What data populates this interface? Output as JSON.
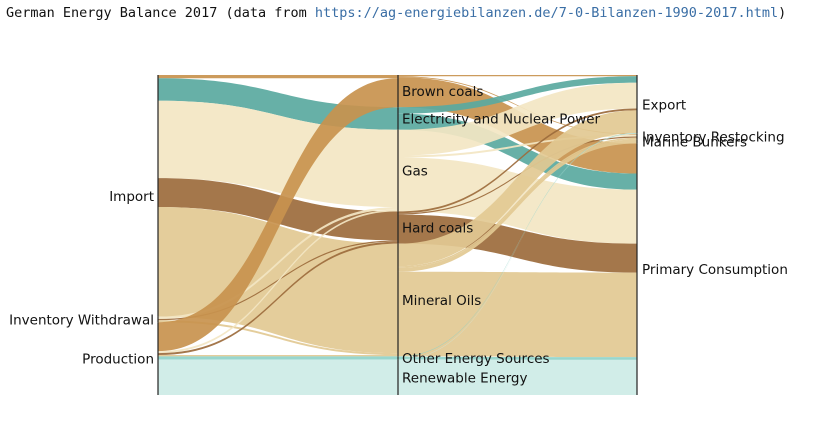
{
  "title": {
    "prefix": "German Energy Balance 2017 (data from ",
    "link": "https://ag-energiebilanzen.de/7-0-Bilanzen-1990-2017.html",
    "suffix": ")"
  },
  "chart_data": {
    "type": "sankey",
    "unit": "",
    "sources": [
      {
        "id": "import",
        "label": "Import"
      },
      {
        "id": "inventory_withdrawal",
        "label": "Inventory Withdrawal"
      },
      {
        "id": "production",
        "label": "Production"
      }
    ],
    "carriers": [
      {
        "id": "brown_coals",
        "label": "Brown coals",
        "color": "#c8934e"
      },
      {
        "id": "electricity_nuclear",
        "label": "Electricity and Nuclear Power",
        "color": "#5aa9a0"
      },
      {
        "id": "gas",
        "label": "Gas",
        "color": "#f3e6c3"
      },
      {
        "id": "hard_coals",
        "label": "Hard coals",
        "color": "#9c6b3c"
      },
      {
        "id": "mineral_oils",
        "label": "Mineral Oils",
        "color": "#e2c992"
      },
      {
        "id": "other_energy",
        "label": "Other Energy Sources",
        "color": "#8fd3c9"
      },
      {
        "id": "renewable",
        "label": "Renewable Energy",
        "color": "#cdebe6"
      }
    ],
    "uses": [
      {
        "id": "export",
        "label": "Export"
      },
      {
        "id": "inventory_restocking",
        "label": "Inventory Restocking"
      },
      {
        "id": "marine_bunkers",
        "label": "Marine Bunkers"
      },
      {
        "id": "primary_consumption",
        "label": "Primary Consumption"
      }
    ],
    "inflows": [
      {
        "source": "import",
        "carrier": "brown_coals",
        "value": 2
      },
      {
        "source": "import",
        "carrier": "electricity_nuclear",
        "value": 14
      },
      {
        "source": "import",
        "carrier": "gas",
        "value": 48
      },
      {
        "source": "import",
        "carrier": "hard_coals",
        "value": 18
      },
      {
        "source": "import",
        "carrier": "mineral_oils",
        "value": 68
      },
      {
        "source": "inventory_withdrawal",
        "carrier": "gas",
        "value": 1.5
      },
      {
        "source": "inventory_withdrawal",
        "carrier": "hard_coals",
        "value": 0.8
      },
      {
        "source": "inventory_withdrawal",
        "carrier": "mineral_oils",
        "value": 1.2
      },
      {
        "source": "production",
        "carrier": "brown_coals",
        "value": 18
      },
      {
        "source": "production",
        "carrier": "gas",
        "value": 1.2
      },
      {
        "source": "production",
        "carrier": "hard_coals",
        "value": 1.2
      },
      {
        "source": "production",
        "carrier": "mineral_oils",
        "value": 0.8
      },
      {
        "source": "production",
        "carrier": "other_energy",
        "value": 2
      },
      {
        "source": "production",
        "carrier": "renewable",
        "value": 22
      }
    ],
    "outflows": [
      {
        "carrier": "brown_coals",
        "use": "export",
        "value": 0.8
      },
      {
        "carrier": "brown_coals",
        "use": "inventory_restocking",
        "value": 0.5
      },
      {
        "carrier": "brown_coals",
        "use": "primary_consumption",
        "value": 18.7
      },
      {
        "carrier": "electricity_nuclear",
        "use": "export",
        "value": 4
      },
      {
        "carrier": "electricity_nuclear",
        "use": "primary_consumption",
        "value": 10
      },
      {
        "carrier": "gas",
        "use": "export",
        "value": 16
      },
      {
        "carrier": "gas",
        "use": "inventory_restocking",
        "value": 1.2
      },
      {
        "carrier": "gas",
        "use": "primary_consumption",
        "value": 33.5
      },
      {
        "carrier": "hard_coals",
        "use": "export",
        "value": 1.2
      },
      {
        "carrier": "hard_coals",
        "use": "inventory_restocking",
        "value": 0.8
      },
      {
        "carrier": "hard_coals",
        "use": "primary_consumption",
        "value": 18
      },
      {
        "carrier": "mineral_oils",
        "use": "export",
        "value": 14
      },
      {
        "carrier": "mineral_oils",
        "use": "inventory_restocking",
        "value": 1
      },
      {
        "carrier": "mineral_oils",
        "use": "marine_bunkers",
        "value": 2.5
      },
      {
        "carrier": "mineral_oils",
        "use": "primary_consumption",
        "value": 52.5
      },
      {
        "carrier": "other_energy",
        "use": "export",
        "value": 0.3
      },
      {
        "carrier": "other_energy",
        "use": "primary_consumption",
        "value": 1.7
      },
      {
        "carrier": "renewable",
        "use": "export",
        "value": 0.2
      },
      {
        "carrier": "renewable",
        "use": "primary_consumption",
        "value": 21.8
      }
    ]
  }
}
